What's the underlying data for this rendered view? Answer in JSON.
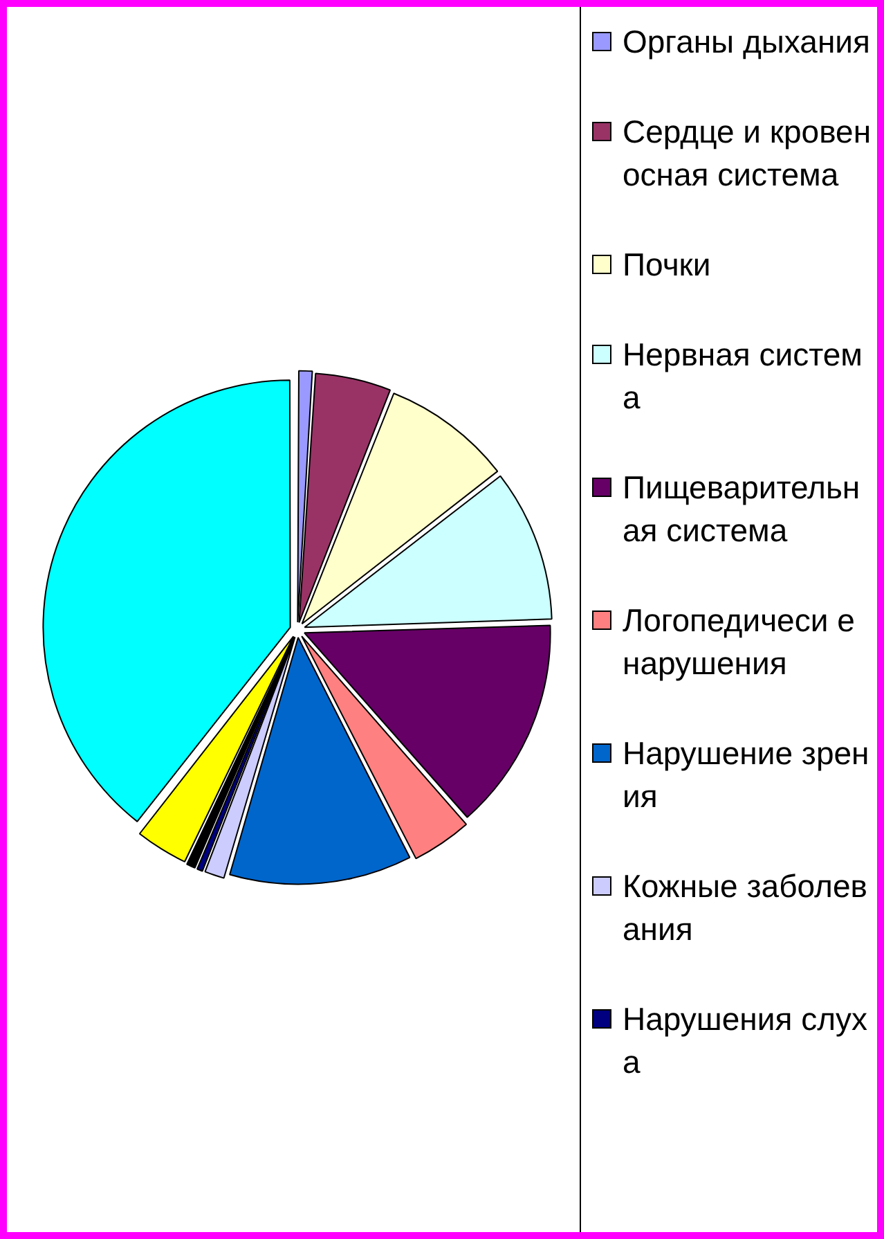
{
  "chart_data": {
    "type": "pie",
    "legend": "right",
    "categories": [
      "Органы дыхания",
      "Сердце и кровеносная система",
      "Почки",
      "Нервная система",
      "Пищеварительная система",
      "Логопедичеси е нарушения",
      "Нарушение зрения",
      "Кожные заболевания",
      "Нарушения слуха",
      null,
      null,
      null
    ],
    "values": [
      1,
      5,
      8.5,
      10,
      14,
      4,
      12,
      1.4,
      0.5,
      0.7,
      3.5,
      39.4
    ],
    "colors": [
      "#9999ff",
      "#993366",
      "#ffffcc",
      "#ccffff",
      "#660066",
      "#ff8080",
      "#0066cc",
      "#ccccff",
      "#000080",
      "#000000",
      "#ffff00",
      "#00ffff"
    ]
  }
}
